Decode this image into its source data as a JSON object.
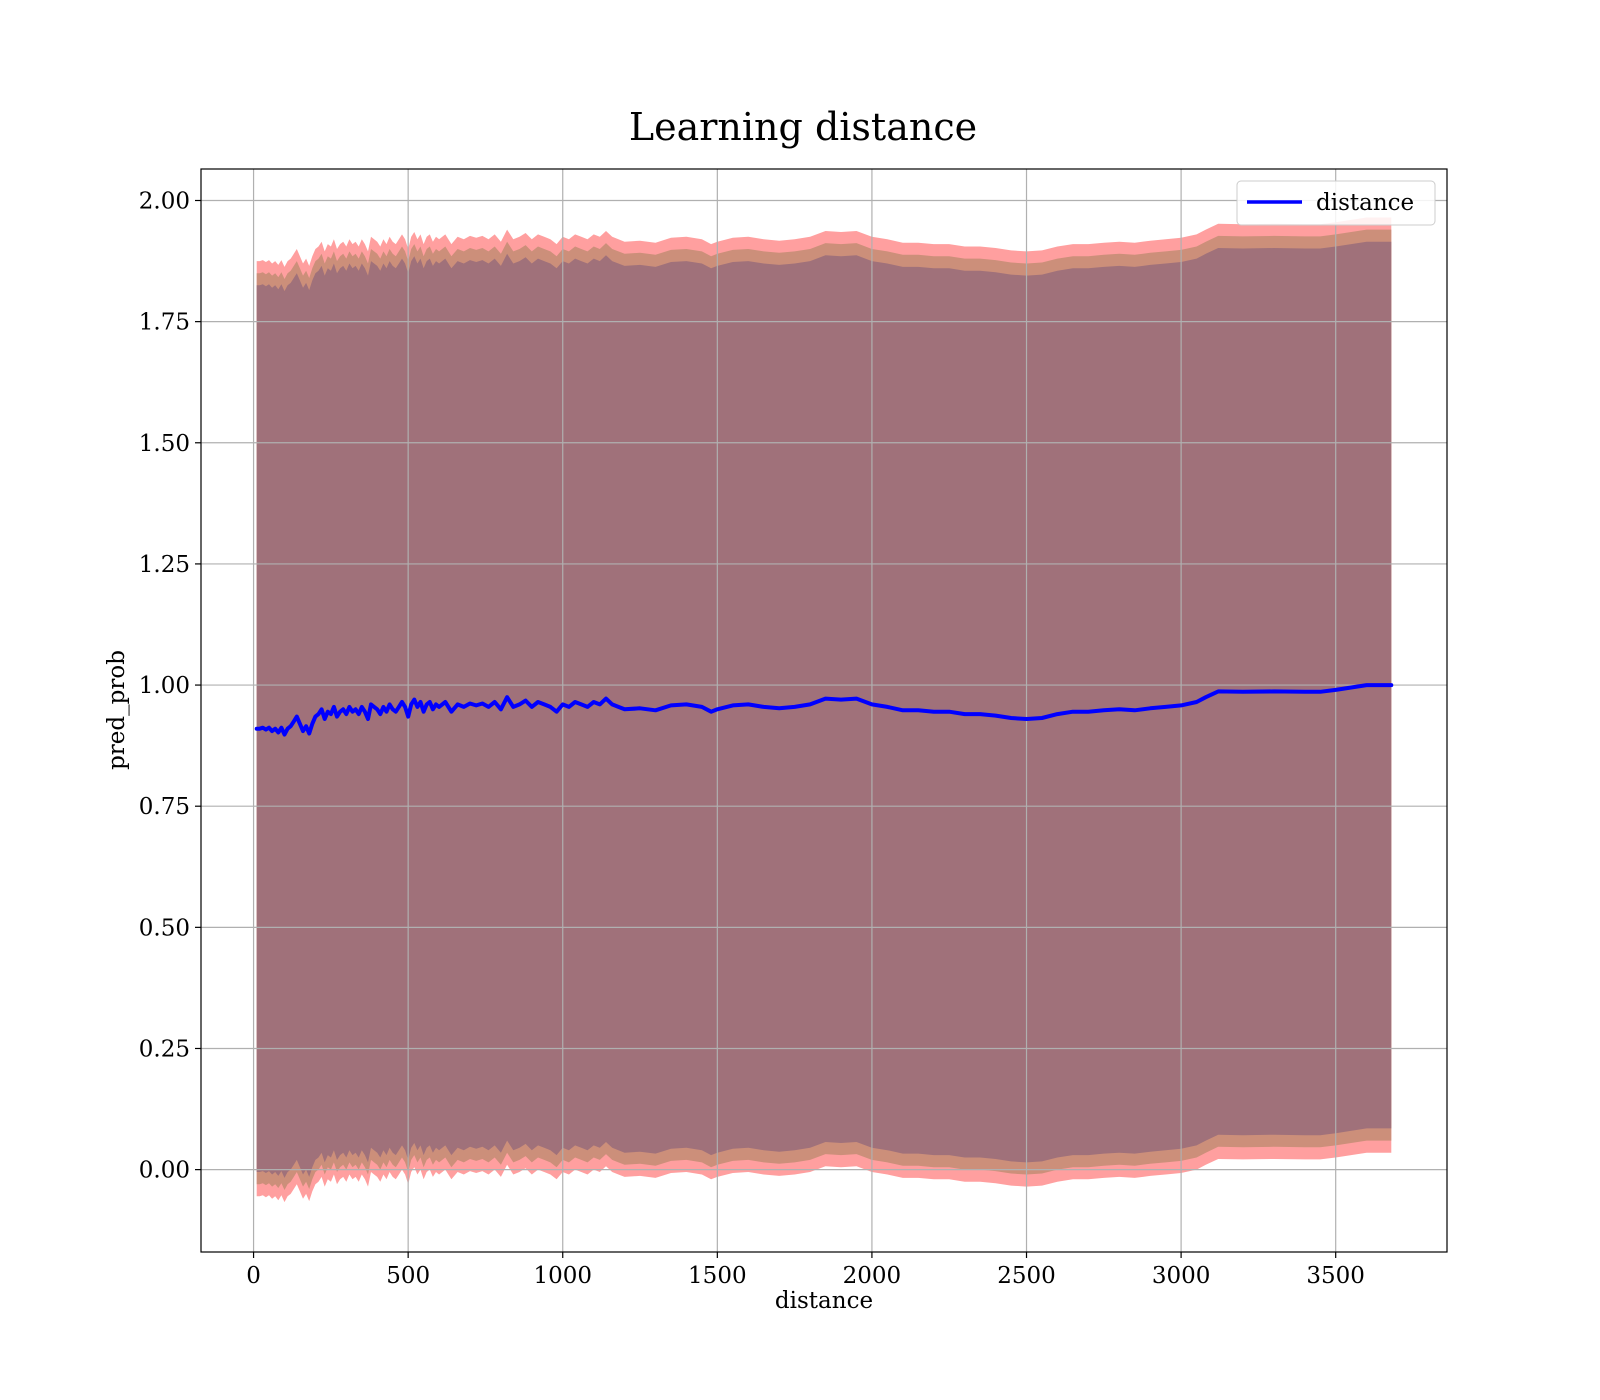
{
  "chart_data": {
    "type": "line",
    "title": "Learning distance",
    "xlabel": "distance",
    "ylabel": "pred_prob",
    "xlim": [
      -170,
      3860
    ],
    "ylim": [
      -0.17,
      2.065
    ],
    "xticks": [
      0,
      500,
      1000,
      1500,
      2000,
      2500,
      3000,
      3500
    ],
    "xtick_labels": [
      "0",
      "500",
      "1000",
      "1500",
      "2000",
      "2500",
      "3000",
      "3500"
    ],
    "yticks": [
      0.0,
      0.25,
      0.5,
      0.75,
      1.0,
      1.25,
      1.5,
      1.75,
      2.0
    ],
    "ytick_labels": [
      "0.00",
      "0.25",
      "0.50",
      "0.75",
      "1.00",
      "1.25",
      "1.50",
      "1.75",
      "2.00"
    ],
    "grid": true,
    "legend_position": "top-right",
    "colors": {
      "line": "#0000ff",
      "outer_band": "#ff9f9f",
      "middle_band": "#cc8f7a",
      "inner_band": "#a0717a",
      "grid": "#b0b0b0"
    },
    "series": [
      {
        "name": "distance",
        "x": [
          10,
          20,
          30,
          40,
          50,
          60,
          70,
          80,
          90,
          100,
          110,
          120,
          130,
          140,
          150,
          160,
          170,
          180,
          190,
          200,
          210,
          220,
          230,
          240,
          250,
          260,
          270,
          280,
          290,
          300,
          310,
          320,
          330,
          340,
          350,
          360,
          370,
          380,
          390,
          400,
          410,
          420,
          430,
          440,
          450,
          460,
          470,
          480,
          490,
          500,
          510,
          520,
          530,
          540,
          550,
          560,
          570,
          580,
          590,
          600,
          620,
          640,
          660,
          680,
          700,
          720,
          740,
          760,
          780,
          800,
          820,
          840,
          860,
          880,
          900,
          920,
          940,
          960,
          980,
          1000,
          1020,
          1040,
          1060,
          1080,
          1100,
          1120,
          1140,
          1160,
          1180,
          1200,
          1250,
          1300,
          1350,
          1400,
          1450,
          1480,
          1500,
          1550,
          1600,
          1650,
          1700,
          1750,
          1800,
          1850,
          1900,
          1950,
          2000,
          2050,
          2100,
          2150,
          2200,
          2250,
          2300,
          2350,
          2400,
          2450,
          2500,
          2550,
          2600,
          2650,
          2700,
          2750,
          2800,
          2850,
          2900,
          2950,
          3000,
          3050,
          3080,
          3120,
          3200,
          3300,
          3400,
          3450,
          3500,
          3600,
          3680
        ],
        "values": [
          0.91,
          0.91,
          0.912,
          0.908,
          0.912,
          0.905,
          0.91,
          0.902,
          0.912,
          0.898,
          0.91,
          0.915,
          0.925,
          0.935,
          0.92,
          0.905,
          0.915,
          0.9,
          0.92,
          0.935,
          0.94,
          0.95,
          0.93,
          0.945,
          0.94,
          0.955,
          0.935,
          0.945,
          0.95,
          0.94,
          0.955,
          0.945,
          0.95,
          0.94,
          0.955,
          0.945,
          0.93,
          0.96,
          0.955,
          0.95,
          0.94,
          0.955,
          0.945,
          0.96,
          0.95,
          0.945,
          0.955,
          0.965,
          0.955,
          0.935,
          0.96,
          0.97,
          0.955,
          0.965,
          0.945,
          0.96,
          0.965,
          0.95,
          0.96,
          0.955,
          0.965,
          0.945,
          0.96,
          0.955,
          0.962,
          0.958,
          0.962,
          0.955,
          0.965,
          0.95,
          0.975,
          0.955,
          0.96,
          0.968,
          0.955,
          0.965,
          0.96,
          0.955,
          0.945,
          0.96,
          0.955,
          0.965,
          0.96,
          0.955,
          0.965,
          0.96,
          0.972,
          0.96,
          0.955,
          0.95,
          0.952,
          0.948,
          0.958,
          0.96,
          0.955,
          0.945,
          0.95,
          0.958,
          0.96,
          0.955,
          0.952,
          0.955,
          0.96,
          0.972,
          0.97,
          0.972,
          0.96,
          0.955,
          0.948,
          0.948,
          0.945,
          0.945,
          0.94,
          0.94,
          0.937,
          0.932,
          0.93,
          0.932,
          0.94,
          0.945,
          0.945,
          0.948,
          0.95,
          0.948,
          0.952,
          0.955,
          0.958,
          0.965,
          0.975,
          0.987,
          0.986,
          0.987,
          0.986,
          0.986,
          0.99,
          1.0,
          1.0
        ]
      }
    ],
    "bands": [
      {
        "role": "outer",
        "upper_offset": 0.965,
        "lower_offset": -0.965
      },
      {
        "role": "middle",
        "upper_offset": 0.94,
        "lower_offset": -0.94
      },
      {
        "role": "inner",
        "upper_offset": 0.915,
        "lower_offset": -0.915
      }
    ]
  }
}
